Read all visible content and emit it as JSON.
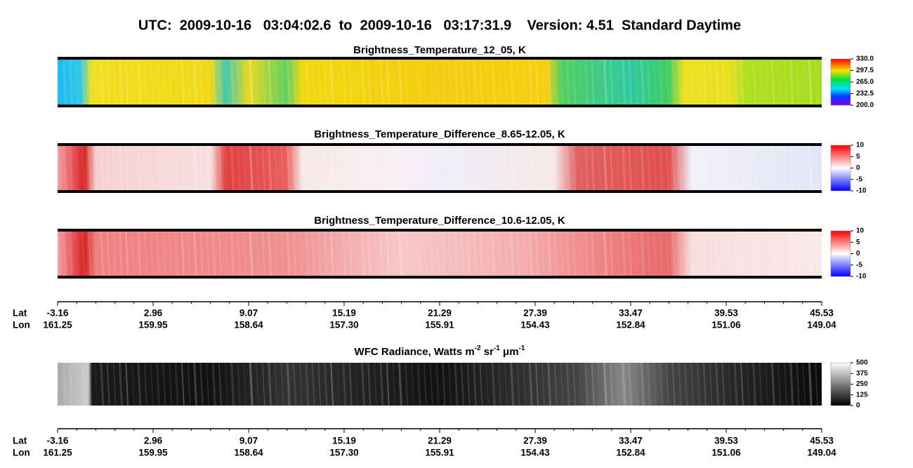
{
  "title": "UTC:  2009-10-16   03:04:02.6  to  2009-10-16   03:17:31.9    Version: 4.51  Standard Daytime",
  "panels": [
    {
      "title": "Brightness_Temperature_12_05, K",
      "colorbar": [
        {
          "value": 330,
          "label": "330.0"
        },
        {
          "value": 297.5,
          "label": "297.5"
        },
        {
          "value": 265,
          "label": "265.0"
        },
        {
          "value": 232.5,
          "label": "232.5"
        },
        {
          "value": 200,
          "label": "200.0"
        }
      ]
    },
    {
      "title": "Brightness_Temperature_Difference_8.65-12.05, K",
      "colorbar": [
        10,
        5,
        0,
        -5,
        -10
      ]
    },
    {
      "title": "Brightness_Temperature_Difference_10.6-12.05, K",
      "colorbar": [
        10,
        5,
        0,
        -5,
        -10
      ]
    },
    {
      "title_parts": [
        "WFC Radiance, Watts m",
        "-2",
        " sr",
        "-1",
        " μm",
        "-1"
      ],
      "colorbar": [
        500,
        375,
        250,
        125,
        0
      ]
    }
  ],
  "axis": {
    "lat_label": "Lat",
    "lon_label": "Lon",
    "lat": [
      "-3.16",
      "2.96",
      "9.07",
      "15.19",
      "21.29",
      "27.39",
      "33.47",
      "39.53",
      "45.53"
    ],
    "lon": [
      "161.25",
      "159.95",
      "158.64",
      "157.30",
      "155.91",
      "154.43",
      "152.84",
      "151.06",
      "149.04"
    ]
  }
}
